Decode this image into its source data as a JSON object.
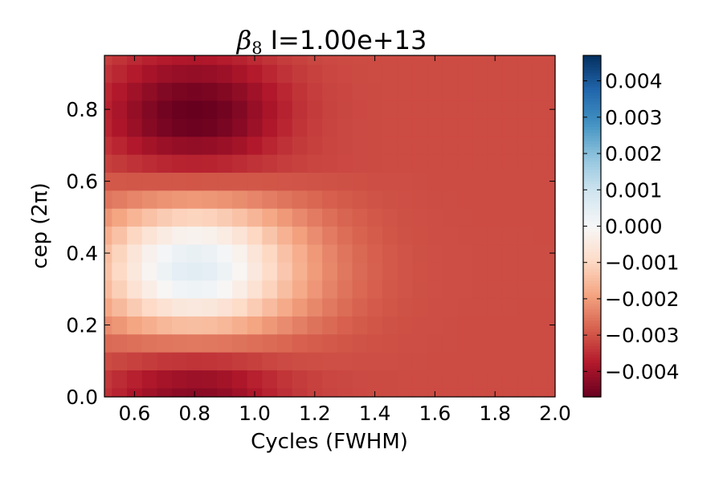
{
  "chart_data": {
    "type": "heatmap",
    "title": {
      "symbol": "β",
      "subscript": "8",
      "text": "I=1.00e+13"
    },
    "xlabel": "Cycles (FWHM)",
    "ylabel": "cep (2π)",
    "xlim": [
      0.5,
      2.0
    ],
    "ylim": [
      0.0,
      0.95
    ],
    "x_ticks": [
      0.6,
      0.8,
      1.0,
      1.2,
      1.4,
      1.6,
      1.8,
      2.0
    ],
    "x_tick_labels": [
      "0.6",
      "0.8",
      "1.0",
      "1.2",
      "1.4",
      "1.6",
      "1.8",
      "2.0"
    ],
    "y_ticks": [
      0.0,
      0.2,
      0.4,
      0.6,
      0.8
    ],
    "y_tick_labels": [
      "0.0",
      "0.2",
      "0.4",
      "0.6",
      "0.8"
    ],
    "colormap": "RdBu",
    "colorbar": {
      "vmin": -0.0047,
      "vmax": 0.0047,
      "ticks": [
        -0.004,
        -0.003,
        -0.002,
        -0.001,
        0.0,
        0.001,
        0.002,
        0.003,
        0.004
      ],
      "tick_labels": [
        "−0.004",
        "−0.003",
        "−0.002",
        "−0.001",
        "0.000",
        "0.001",
        "0.002",
        "0.003",
        "0.004"
      ]
    },
    "grid": false,
    "x_centers": [
      0.5,
      0.55,
      0.6,
      0.65,
      0.7,
      0.75,
      0.8,
      0.85,
      0.9,
      0.95,
      1.0,
      1.05,
      1.1,
      1.15,
      1.2,
      1.25,
      1.3,
      1.35,
      1.4,
      1.45,
      1.5,
      1.55,
      1.6,
      1.65,
      1.7,
      1.75,
      1.8,
      1.85,
      1.9,
      1.95,
      2.0
    ],
    "y_centers": [
      0.0,
      0.05,
      0.1,
      0.15,
      0.2,
      0.25,
      0.3,
      0.35,
      0.4,
      0.45,
      0.5,
      0.55,
      0.6,
      0.65,
      0.7,
      0.75,
      0.8,
      0.85,
      0.9,
      0.95
    ],
    "values": [
      [
        -0.00345,
        -0.00362,
        -0.00382,
        -0.00399,
        -0.00414,
        -0.00424,
        -0.00428,
        -0.00425,
        -0.00416,
        -0.004,
        -0.00381,
        -0.00362,
        -0.00346,
        -0.00333,
        -0.00324,
        -0.00318,
        -0.00314,
        -0.00312,
        -0.0031,
        -0.0031,
        -0.00309,
        -0.00309,
        -0.00309,
        -0.00309,
        -0.00309,
        -0.00309,
        -0.00309,
        -0.00309,
        -0.00309,
        -0.00309,
        -0.00309
      ],
      [
        -0.00335,
        -0.0035,
        -0.00366,
        -0.0038,
        -0.00392,
        -0.004,
        -0.00403,
        -0.00401,
        -0.00393,
        -0.00381,
        -0.00366,
        -0.00351,
        -0.00338,
        -0.00328,
        -0.00321,
        -0.00316,
        -0.00313,
        -0.00311,
        -0.0031,
        -0.0031,
        -0.00309,
        -0.00309,
        -0.00309,
        -0.00309,
        -0.00309,
        -0.00309,
        -0.00309,
        -0.00309,
        -0.00309,
        -0.00309,
        -0.00309
      ],
      [
        -0.00308,
        -0.00315,
        -0.00322,
        -0.00328,
        -0.00334,
        -0.00337,
        -0.00339,
        -0.00338,
        -0.00334,
        -0.00329,
        -0.00323,
        -0.00316,
        -0.00311,
        -0.00307,
        -0.00305,
        -0.00304,
        -0.00304,
        -0.00305,
        -0.00305,
        -0.00306,
        -0.00307,
        -0.00307,
        -0.00308,
        -0.00308,
        -0.00308,
        -0.00308,
        -0.00308,
        -0.00308,
        -0.00308,
        -0.00308,
        -0.00308
      ],
      [
        -0.00269,
        -0.00265,
        -0.0026,
        -0.00255,
        -0.00252,
        -0.0025,
        -0.00249,
        -0.0025,
        -0.00252,
        -0.00256,
        -0.00261,
        -0.00267,
        -0.00273,
        -0.0028,
        -0.00286,
        -0.00291,
        -0.00295,
        -0.00299,
        -0.00301,
        -0.00303,
        -0.00305,
        -0.00306,
        -0.00307,
        -0.00307,
        -0.00308,
        -0.00308,
        -0.00308,
        -0.00308,
        -0.00308,
        -0.00308,
        -0.00308
      ],
      [
        -0.00224,
        -0.00207,
        -0.00188,
        -0.00171,
        -0.00157,
        -0.00148,
        -0.00145,
        -0.00148,
        -0.00157,
        -0.00171,
        -0.00188,
        -0.00206,
        -0.00223,
        -0.0024,
        -0.00256,
        -0.00269,
        -0.0028,
        -0.00289,
        -0.00295,
        -0.003,
        -0.00303,
        -0.00305,
        -0.00306,
        -0.00307,
        -0.00308,
        -0.00308,
        -0.00308,
        -0.00308,
        -0.00308,
        -0.00308,
        -0.00308
      ],
      [
        -0.00182,
        -0.00153,
        -0.00121,
        -0.00093,
        -0.0007,
        -0.00054,
        -0.00049,
        -0.00054,
        -0.00069,
        -0.00092,
        -0.0012,
        -0.00149,
        -0.00178,
        -0.00204,
        -0.00228,
        -0.00249,
        -0.00266,
        -0.00279,
        -0.00288,
        -0.00295,
        -0.003,
        -0.00303,
        -0.00305,
        -0.00306,
        -0.00307,
        -0.00307,
        -0.00307,
        -0.00307,
        -0.00308,
        -0.00308,
        -0.00308
      ],
      [
        -0.00151,
        -0.00113,
        -0.00071,
        -0.00034,
        -4e-05,
        0.00016,
        0.00023,
        0.00016,
        -3e-05,
        -0.00033,
        -0.0007,
        -0.00108,
        -0.00144,
        -0.00178,
        -0.00208,
        -0.00234,
        -0.00255,
        -0.00271,
        -0.00283,
        -0.00292,
        -0.00298,
        -0.00302,
        -0.00304,
        -0.00306,
        -0.00306,
        -0.00307,
        -0.00307,
        -0.00307,
        -0.00307,
        -0.00307,
        -0.00307
      ],
      [
        -0.00138,
        -0.00096,
        -0.0005,
        -9e-05,
        0.00024,
        0.00046,
        0.00053,
        0.00046,
        0.00025,
        -8e-05,
        -0.00049,
        -0.0009,
        -0.0013,
        -0.00167,
        -0.002,
        -0.00228,
        -0.0025,
        -0.00268,
        -0.00281,
        -0.0029,
        -0.00297,
        -0.00301,
        -0.00304,
        -0.00305,
        -0.00306,
        -0.00307,
        -0.00307,
        -0.00307,
        -0.00307,
        -0.00307,
        -0.00307
      ],
      [
        -0.00145,
        -0.00105,
        -0.00061,
        -0.00022,
        9e-05,
        0.0003,
        0.00037,
        0.0003,
        0.0001,
        -0.00021,
        -0.0006,
        -0.00099,
        -0.00137,
        -0.00172,
        -0.00204,
        -0.00231,
        -0.00253,
        -0.0027,
        -0.00282,
        -0.00291,
        -0.00297,
        -0.00302,
        -0.00304,
        -0.00306,
        -0.00306,
        -0.00307,
        -0.00307,
        -0.00307,
        -0.00307,
        -0.00307,
        -0.00307
      ],
      [
        -0.0017,
        -0.00137,
        -0.001,
        -0.00067,
        -0.00041,
        -0.00023,
        -0.00017,
        -0.00023,
        -0.0004,
        -0.00066,
        -0.00099,
        -0.00133,
        -0.00165,
        -0.00195,
        -0.00222,
        -0.00245,
        -0.00263,
        -0.00277,
        -0.00287,
        -0.00295,
        -0.003,
        -0.00303,
        -0.00305,
        -0.00306,
        -0.00307,
        -0.00307,
        -0.00307,
        -0.00307,
        -0.00307,
        -0.00308,
        -0.00308
      ],
      [
        -0.00209,
        -0.00186,
        -0.00161,
        -0.00139,
        -0.00121,
        -0.00109,
        -0.00105,
        -0.00109,
        -0.00121,
        -0.00138,
        -0.0016,
        -0.00183,
        -0.00205,
        -0.00226,
        -0.00245,
        -0.00261,
        -0.00275,
        -0.00285,
        -0.00293,
        -0.00298,
        -0.00302,
        -0.00304,
        -0.00306,
        -0.00307,
        -0.00307,
        -0.00308,
        -0.00308,
        -0.00308,
        -0.00308,
        -0.00308,
        -0.00308
      ],
      [
        -0.00254,
        -0.00244,
        -0.00232,
        -0.00221,
        -0.00213,
        -0.00207,
        -0.00205,
        -0.00207,
        -0.00212,
        -0.00221,
        -0.00231,
        -0.00242,
        -0.00253,
        -0.00264,
        -0.00273,
        -0.00282,
        -0.00289,
        -0.00294,
        -0.00299,
        -0.00302,
        -0.00304,
        -0.00306,
        -0.00307,
        -0.00307,
        -0.00308,
        -0.00308,
        -0.00308,
        -0.00308,
        -0.00308,
        -0.00308,
        -0.00308
      ],
      [
        -0.00293,
        -0.00293,
        -0.00294,
        -0.00294,
        -0.00294,
        -0.00294,
        -0.00295,
        -0.00294,
        -0.00294,
        -0.00294,
        -0.00294,
        -0.00295,
        -0.00296,
        -0.00297,
        -0.00299,
        -0.003,
        -0.00302,
        -0.00303,
        -0.00305,
        -0.00306,
        -0.00306,
        -0.00307,
        -0.00308,
        -0.00308,
        -0.00308,
        -0.00308,
        -0.00308,
        -0.00308,
        -0.00308,
        -0.00308,
        -0.00308
      ],
      [
        -0.00323,
        -0.00331,
        -0.00341,
        -0.0035,
        -0.00357,
        -0.00361,
        -0.00363,
        -0.00361,
        -0.00357,
        -0.0035,
        -0.00342,
        -0.00334,
        -0.00327,
        -0.00321,
        -0.00317,
        -0.00314,
        -0.00312,
        -0.00311,
        -0.0031,
        -0.00309,
        -0.00309,
        -0.00309,
        -0.00309,
        -0.00309,
        -0.00309,
        -0.00309,
        -0.00309,
        -0.00309,
        -0.00309,
        -0.00309,
        -0.00309
      ],
      [
        -0.00343,
        -0.00359,
        -0.00377,
        -0.00393,
        -0.00406,
        -0.00414,
        -0.00417,
        -0.00414,
        -0.00406,
        -0.00393,
        -0.00376,
        -0.00359,
        -0.00344,
        -0.00332,
        -0.00323,
        -0.00317,
        -0.00313,
        -0.00311,
        -0.0031,
        -0.00309,
        -0.00309,
        -0.00309,
        -0.00309,
        -0.00309,
        -0.00309,
        -0.00309,
        -0.00309,
        -0.00309,
        -0.00309,
        -0.00309,
        -0.00309
      ],
      [
        -0.0036,
        -0.00382,
        -0.00407,
        -0.0043,
        -0.00448,
        -0.0046,
        -0.00464,
        -0.0046,
        -0.00448,
        -0.00429,
        -0.00405,
        -0.0038,
        -0.00358,
        -0.00339,
        -0.00326,
        -0.00318,
        -0.00313,
        -0.00311,
        -0.0031,
        -0.00309,
        -0.00309,
        -0.00309,
        -0.00309,
        -0.00309,
        -0.00309,
        -0.00309,
        -0.00309,
        -0.00309,
        -0.00309,
        -0.00309,
        -0.00309
      ],
      [
        -0.00364,
        -0.00387,
        -0.00413,
        -0.00436,
        -0.00455,
        -0.00467,
        -0.00472,
        -0.00467,
        -0.00455,
        -0.00436,
        -0.00411,
        -0.00386,
        -0.00363,
        -0.00344,
        -0.0033,
        -0.0032,
        -0.00315,
        -0.00312,
        -0.0031,
        -0.00309,
        -0.00309,
        -0.00309,
        -0.00309,
        -0.00309,
        -0.00309,
        -0.00309,
        -0.00309,
        -0.00309,
        -0.00309,
        -0.00309,
        -0.00309
      ],
      [
        -0.00356,
        -0.00376,
        -0.00399,
        -0.00419,
        -0.00436,
        -0.00446,
        -0.0045,
        -0.00446,
        -0.00435,
        -0.00419,
        -0.00398,
        -0.00376,
        -0.00356,
        -0.00339,
        -0.00327,
        -0.00319,
        -0.00314,
        -0.00311,
        -0.0031,
        -0.00309,
        -0.00309,
        -0.00309,
        -0.00309,
        -0.00309,
        -0.00309,
        -0.00309,
        -0.00309,
        -0.00309,
        -0.00309,
        -0.00309,
        -0.00309
      ],
      [
        -0.00341,
        -0.00357,
        -0.00374,
        -0.0039,
        -0.00403,
        -0.00411,
        -0.00414,
        -0.00411,
        -0.00402,
        -0.00389,
        -0.00373,
        -0.00356,
        -0.00341,
        -0.0033,
        -0.00321,
        -0.00316,
        -0.00312,
        -0.0031,
        -0.00309,
        -0.00309,
        -0.00309,
        -0.00309,
        -0.00309,
        -0.00309,
        -0.00309,
        -0.00309,
        -0.00309,
        -0.00309,
        -0.00309,
        -0.00309,
        -0.00309
      ],
      [
        -0.00327,
        -0.00339,
        -0.00352,
        -0.00364,
        -0.00373,
        -0.00379,
        -0.00381,
        -0.00379,
        -0.00372,
        -0.00363,
        -0.00351,
        -0.00339,
        -0.00329,
        -0.00321,
        -0.00315,
        -0.00312,
        -0.0031,
        -0.00309,
        -0.00309,
        -0.00309,
        -0.00309,
        -0.00309,
        -0.00309,
        -0.00309,
        -0.00309,
        -0.00309,
        -0.00309,
        -0.00309,
        -0.00309,
        -0.00309,
        -0.00309
      ]
    ]
  }
}
